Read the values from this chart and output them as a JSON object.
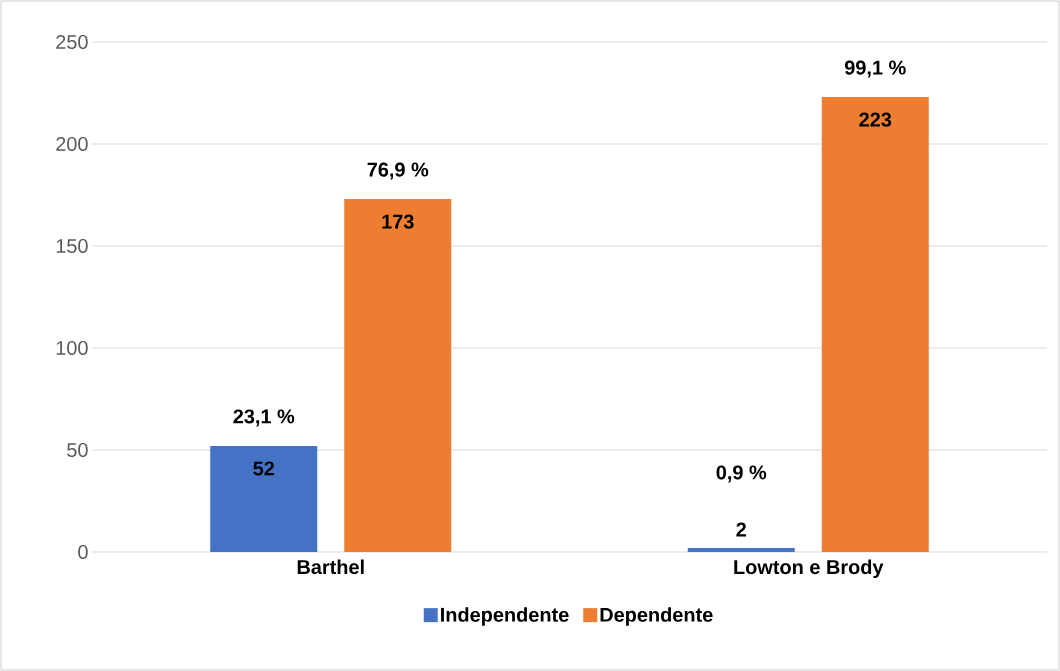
{
  "chart_data": {
    "type": "bar",
    "categories": [
      "Barthel",
      "Lowton e Brody"
    ],
    "series": [
      {
        "name": "Independente",
        "color": "#4472c4",
        "values": [
          52,
          2
        ]
      },
      {
        "name": "Dependente",
        "color": "#ed7d31",
        "values": [
          173,
          223
        ]
      }
    ],
    "ylim": [
      0,
      250
    ],
    "yticks": [
      0,
      50,
      100,
      150,
      200,
      250
    ],
    "grid": "y",
    "legend": "bottom",
    "data_labels": true,
    "annotations": [
      "23,1 %",
      "76,9 %",
      "0,9 %",
      "99,1 %"
    ]
  }
}
